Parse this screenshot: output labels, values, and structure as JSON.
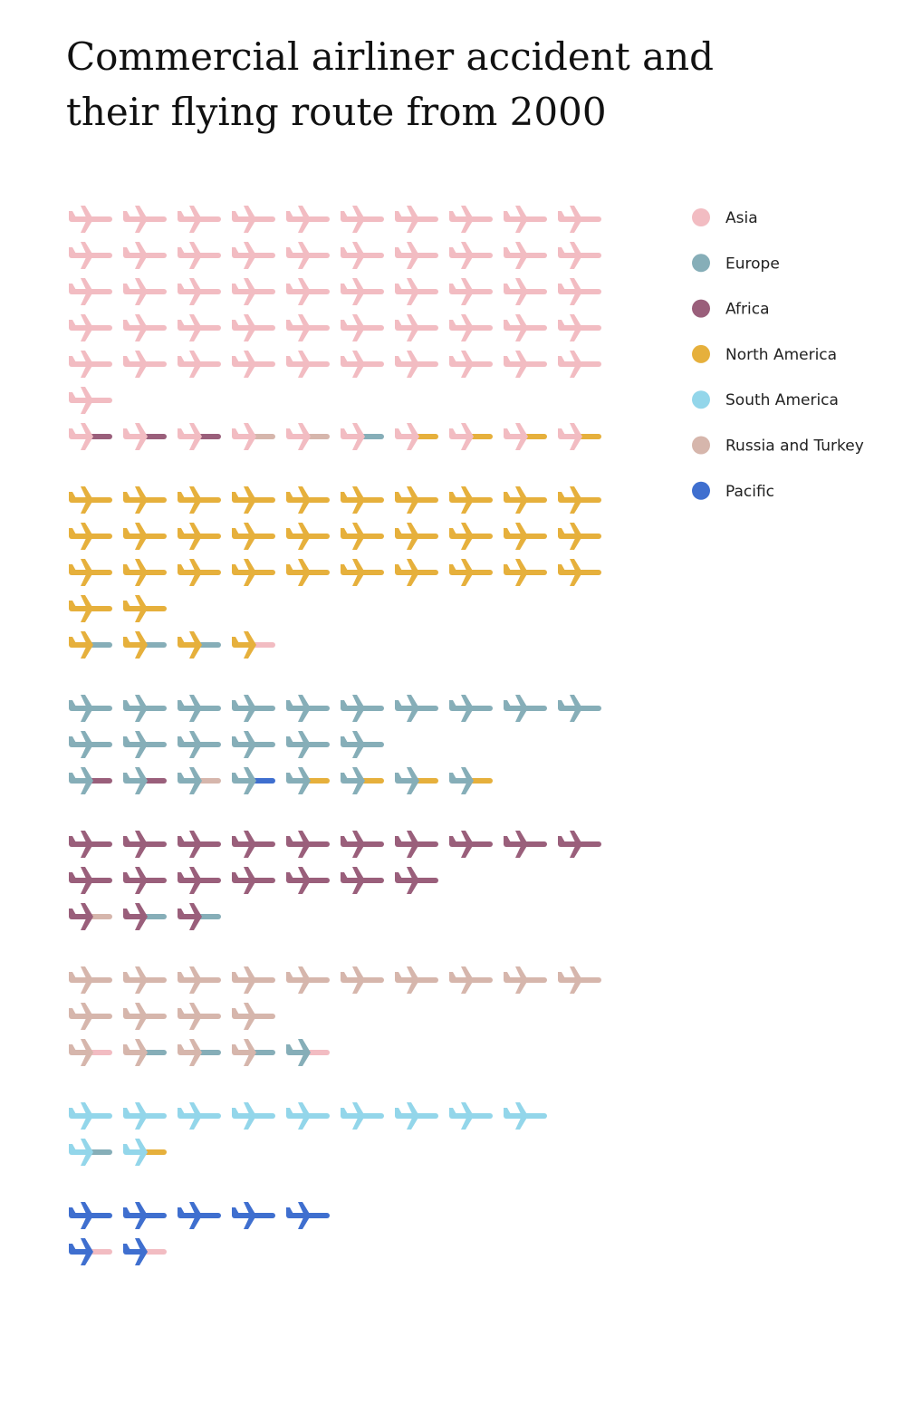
{
  "chart_data": {
    "type": "pictogram",
    "title": "Commercial airliner accident and their flying route from 2000",
    "regions": [
      {
        "name": "Asia",
        "color": "#f2bcc2"
      },
      {
        "name": "Europe",
        "color": "#86aeb8"
      },
      {
        "name": "Africa",
        "color": "#9a5f7b"
      },
      {
        "name": "North America",
        "color": "#e6b03c"
      },
      {
        "name": "South America",
        "color": "#93d6ea"
      },
      {
        "name": "Russia and Turkey",
        "color": "#d6b6ac"
      },
      {
        "name": "Pacific",
        "color": "#3f6fcf"
      }
    ],
    "groups": [
      {
        "region": "Asia",
        "routes": [
          {
            "from": "Asia",
            "to": "Asia",
            "count": 51
          },
          {
            "from": "Asia",
            "to": "Africa",
            "count": 3
          },
          {
            "from": "Asia",
            "to": "Russia and Turkey",
            "count": 2
          },
          {
            "from": "Asia",
            "to": "Europe",
            "count": 1
          },
          {
            "from": "Asia",
            "to": "North America",
            "count": 4
          }
        ]
      },
      {
        "region": "North America",
        "routes": [
          {
            "from": "North America",
            "to": "North America",
            "count": 32
          },
          {
            "from": "North America",
            "to": "Europe",
            "count": 3
          },
          {
            "from": "North America",
            "to": "Asia",
            "count": 1
          }
        ]
      },
      {
        "region": "Europe",
        "routes": [
          {
            "from": "Europe",
            "to": "Europe",
            "count": 16
          },
          {
            "from": "Europe",
            "to": "Africa",
            "count": 2
          },
          {
            "from": "Europe",
            "to": "Russia and Turkey",
            "count": 1
          },
          {
            "from": "Europe",
            "to": "Pacific",
            "count": 1
          },
          {
            "from": "Europe",
            "to": "North America",
            "count": 4
          }
        ]
      },
      {
        "region": "Africa",
        "routes": [
          {
            "from": "Africa",
            "to": "Africa",
            "count": 17
          },
          {
            "from": "Africa",
            "to": "Russia and Turkey",
            "count": 1
          },
          {
            "from": "Africa",
            "to": "Europe",
            "count": 2
          }
        ]
      },
      {
        "region": "Russia and Turkey",
        "routes": [
          {
            "from": "Russia and Turkey",
            "to": "Russia and Turkey",
            "count": 14
          },
          {
            "from": "Russia and Turkey",
            "to": "Asia",
            "count": 1
          },
          {
            "from": "Russia and Turkey",
            "to": "Europe",
            "count": 3
          },
          {
            "from": "Europe",
            "to": "Asia",
            "count": 1
          }
        ]
      },
      {
        "region": "South America",
        "routes": [
          {
            "from": "South America",
            "to": "South America",
            "count": 9
          },
          {
            "from": "South America",
            "to": "Europe",
            "count": 1
          },
          {
            "from": "South America",
            "to": "North America",
            "count": 1
          }
        ]
      },
      {
        "region": "Pacific",
        "routes": [
          {
            "from": "Pacific",
            "to": "Pacific",
            "count": 5
          },
          {
            "from": "Pacific",
            "to": "Asia",
            "count": 2
          }
        ]
      }
    ]
  }
}
